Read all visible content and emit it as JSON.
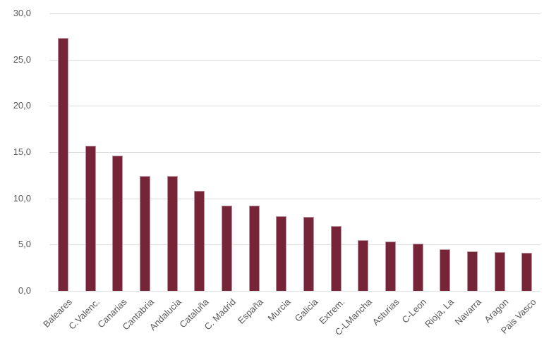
{
  "chart_data": {
    "type": "bar",
    "title": "",
    "xlabel": "",
    "ylabel": "",
    "categories": [
      "Baleares",
      "C.Valenc.",
      "Canarias",
      "Cantabria",
      "Andalucia",
      "Cataluña",
      "C. Madrid",
      "España",
      "Murcia",
      "Galicia",
      "Extrem.",
      "C-LMancha",
      "Asturias",
      "C-Leon",
      "Rioja, La",
      "Navarra",
      "Aragon",
      "Pais Vasco"
    ],
    "values": [
      27.3,
      15.7,
      14.6,
      12.4,
      12.4,
      10.8,
      9.2,
      9.2,
      8.1,
      8.0,
      7.0,
      5.5,
      5.3,
      5.1,
      4.5,
      4.3,
      4.2,
      4.1
    ],
    "ylim": [
      0,
      30
    ],
    "ytick_step": 5,
    "ytick_labels": [
      "0,0",
      "5,0",
      "10,0",
      "15,0",
      "20,0",
      "25,0",
      "30,0"
    ],
    "grid": true,
    "legend": false,
    "colors": {
      "bar_fill": "#762438",
      "bar_border": "#bc939d",
      "gridline": "#dcdcdc",
      "axis_text": "#595959",
      "background": "#ffffff"
    }
  }
}
